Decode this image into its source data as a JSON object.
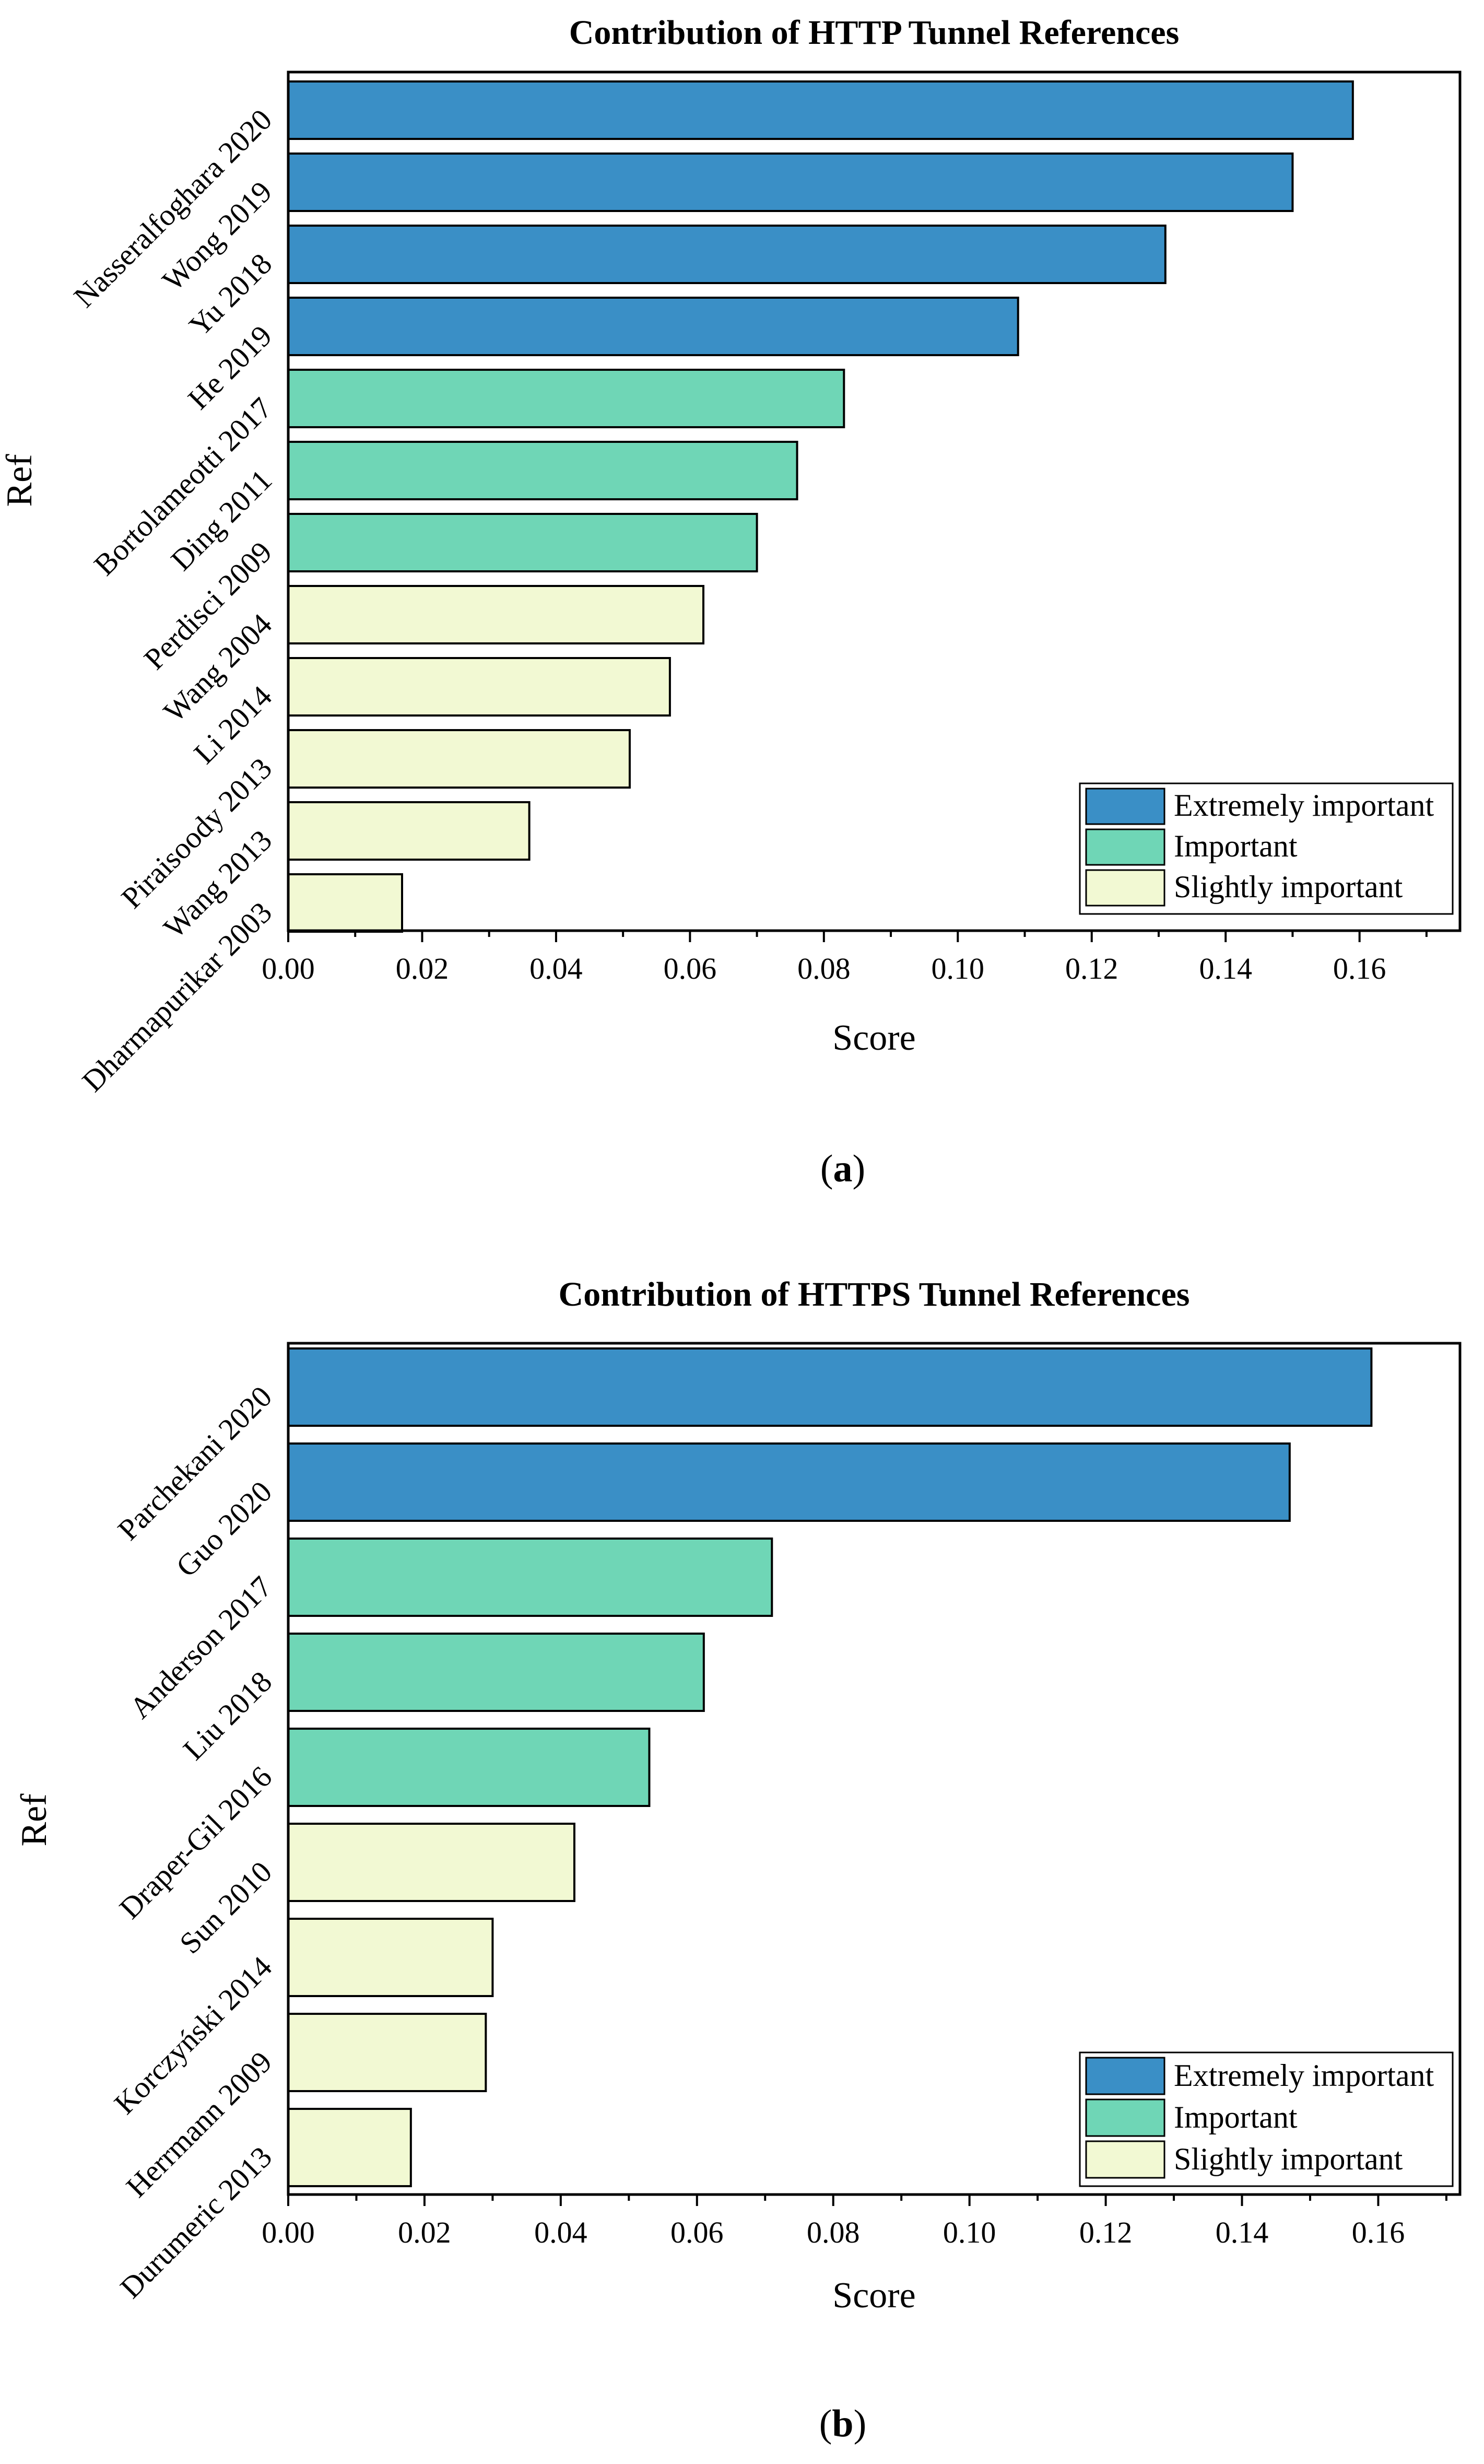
{
  "chart_data": [
    {
      "type": "bar",
      "orientation": "horizontal",
      "title": "Contribution of HTTP Tunnel References",
      "xlabel": "Score",
      "ylabel": "Ref",
      "caption_letter": "a",
      "xlim": [
        0,
        0.175
      ],
      "xticks": [
        "0.00",
        "0.02",
        "0.04",
        "0.06",
        "0.08",
        "0.10",
        "0.12",
        "0.14",
        "0.16"
      ],
      "categories": [
        "Nasseralfoghara 2020",
        "Wong 2019",
        "Yu 2018",
        "He 2019",
        "Bortolameotti 2017",
        "Ding 2011",
        "Perdisci 2009",
        "Wang 2004",
        "Li 2014",
        "Piraisoody 2013",
        "Wang 2013",
        "Dharmapurikar 2003"
      ],
      "values": [
        0.159,
        0.15,
        0.131,
        0.109,
        0.083,
        0.076,
        0.07,
        0.062,
        0.057,
        0.051,
        0.036,
        0.017
      ],
      "groups": [
        "Extremely important",
        "Extremely important",
        "Extremely important",
        "Extremely important",
        "Important",
        "Important",
        "Important",
        "Slightly important",
        "Slightly important",
        "Slightly important",
        "Slightly important",
        "Slightly important"
      ],
      "legend": [
        "Extremely important",
        "Important",
        "Slightly important"
      ],
      "legend_position": "bottom-right"
    },
    {
      "type": "bar",
      "orientation": "horizontal",
      "title": "Contribution of HTTPS Tunnel References",
      "xlabel": "Score",
      "ylabel": "Ref",
      "caption_letter": "b",
      "xlim": [
        0,
        0.172
      ],
      "xticks": [
        "0.00",
        "0.02",
        "0.04",
        "0.06",
        "0.08",
        "0.10",
        "0.12",
        "0.14",
        "0.16"
      ],
      "categories": [
        "Parchekani 2020",
        "Guo 2020",
        "Anderson 2017",
        "Liu 2018",
        "Draper-Gil 2016",
        "Sun 2010",
        "Korczyński 2014",
        "Herrmann 2009",
        "Durumeric 2013"
      ],
      "values": [
        0.159,
        0.147,
        0.071,
        0.061,
        0.053,
        0.042,
        0.03,
        0.029,
        0.018
      ],
      "groups": [
        "Extremely important",
        "Extremely important",
        "Important",
        "Important",
        "Important",
        "Slightly important",
        "Slightly important",
        "Slightly important",
        "Slightly important"
      ],
      "legend": [
        "Extremely important",
        "Important",
        "Slightly important"
      ],
      "legend_position": "bottom-right"
    }
  ],
  "colors": {
    "Extremely important": "#3a8fc6",
    "Important": "#6fd6b6",
    "Slightly important": "#f2f9d3",
    "bar_edge": "#000000"
  }
}
